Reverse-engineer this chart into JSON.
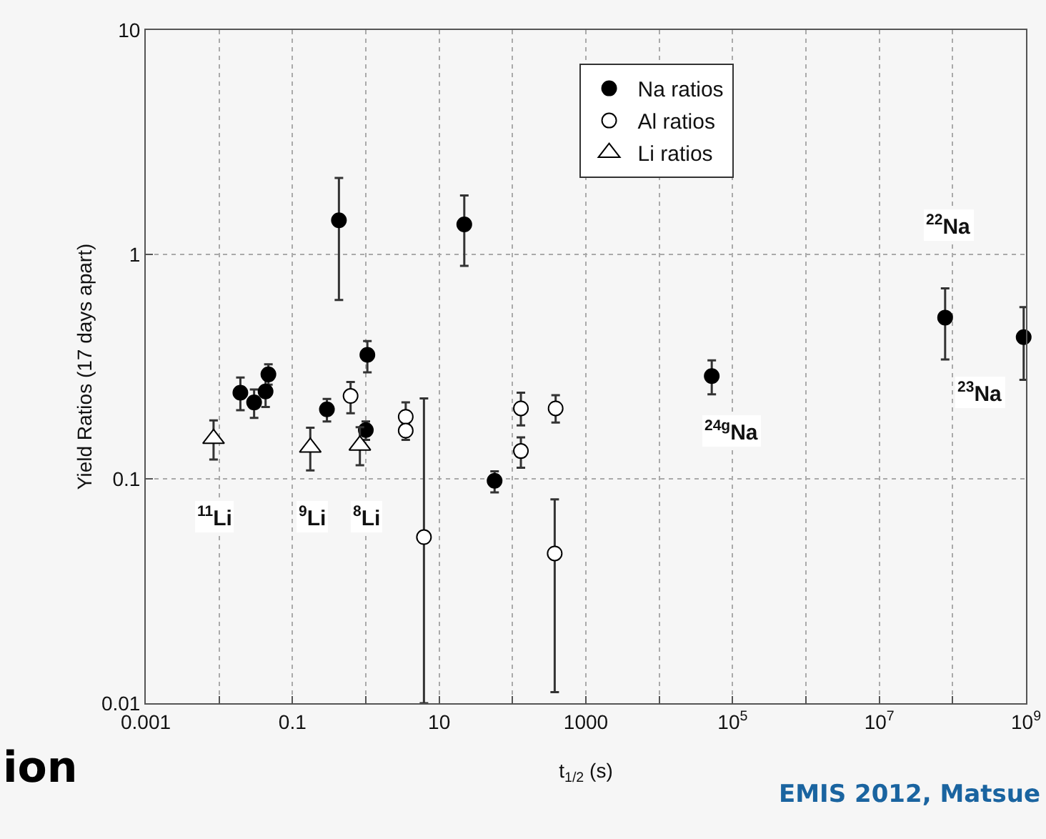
{
  "chart_data": {
    "type": "scatter",
    "xlabel": "t$_{1/2}$ (s)",
    "ylabel": "Yield Ratios (17 days apart)",
    "log": "xy",
    "grid": true,
    "legend": "top",
    "xlim": [
      0.001,
      1000000000
    ],
    "ylim": [
      0.01,
      10
    ],
    "xticks": [
      0.001,
      {
        "value": 0.01,
        "label": null
      },
      0.1,
      {
        "value": 1,
        "label": null
      },
      10,
      {
        "value": 100,
        "label": null
      },
      1000,
      {
        "value": 10000,
        "label": null
      },
      {
        "value": 100000,
        "label": "10$^{5}$"
      },
      {
        "value": 1000000,
        "label": null
      },
      {
        "value": 10000000,
        "label": "10$^{7}$"
      },
      {
        "value": 100000000,
        "label": null
      },
      {
        "value": 1000000000,
        "label": "10$^{9}$"
      }
    ],
    "yticks": [
      0.01,
      0.1,
      1,
      10
    ],
    "series": [
      {
        "name": "Na ratios",
        "color": "#000000",
        "marker": "circle",
        "x": [
          0.0195,
          0.03,
          0.043,
          0.047,
          0.295,
          0.43,
          1.05,
          1.0,
          22,
          57,
          52000,
          79000000,
          930000000
        ],
        "values": [
          0.242,
          0.219,
          0.245,
          0.292,
          0.204,
          1.42,
          0.357,
          0.165,
          1.36,
          0.098,
          0.287,
          0.523,
          0.428
        ],
        "errors": [
          [
            0.202,
            0.283
          ],
          [
            0.187,
            0.25
          ],
          [
            0.209,
            0.287
          ],
          [
            0.263,
            0.324
          ],
          [
            0.18,
            0.227
          ],
          [
            0.627,
            2.19
          ],
          [
            0.298,
            0.411
          ],
          [
            0.149,
            0.18
          ],
          [
            0.89,
            1.83
          ],
          [
            0.087,
            0.108
          ],
          [
            0.238,
            0.337
          ],
          [
            0.34,
            0.706
          ],
          [
            0.276,
            0.582
          ]
        ]
      },
      {
        "name": "Al ratios",
        "color": "#ffffff",
        "marker": "circle",
        "x": [
          0.62,
          3.5,
          3.5,
          6.2,
          130,
          130,
          387,
          376
        ],
        "values": [
          0.234,
          0.189,
          0.164,
          0.055,
          0.206,
          0.133,
          0.206,
          0.0465
        ],
        "errors": [
          [
            0.196,
            0.27
          ],
          [
            0.172,
            0.219
          ],
          [
            0.149,
            0.178
          ],
          [
            0.01,
            0.228
          ],
          [
            0.173,
            0.242
          ],
          [
            0.112,
            0.153
          ],
          [
            0.178,
            0.236
          ],
          [
            0.0112,
            0.081
          ]
        ]
      },
      {
        "name": "Li ratios",
        "color": "#ffffff",
        "marker": "triangle",
        "x": [
          0.0084,
          0.175,
          0.83
        ],
        "values": [
          0.151,
          0.138,
          0.141
        ],
        "errors": [
          [
            0.122,
            0.182
          ],
          [
            0.109,
            0.169
          ],
          [
            0.115,
            0.17
          ]
        ]
      }
    ],
    "annotations": [
      {
        "text": "$^{11}$Li",
        "x": 0.0086,
        "y": 0.068
      },
      {
        "text": "$^{9}$Li",
        "x": 0.185,
        "y": 0.068
      },
      {
        "text": "$^{8}$Li",
        "x": 1.04,
        "y": 0.068
      },
      {
        "text": "$^{24g}$Na",
        "x": 98000,
        "y": 0.164
      },
      {
        "text": "$^{22}$Na",
        "x": 87000000,
        "y": 1.36
      },
      {
        "text": "$^{23}$Na",
        "x": 240000000,
        "y": 0.242
      },
      "ion",
      "EMIS 2012, Matsue"
    ]
  }
}
